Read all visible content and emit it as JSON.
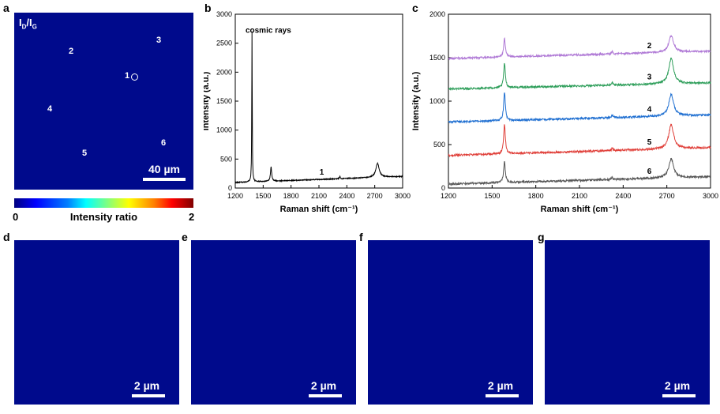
{
  "panels": {
    "a": "a",
    "b": "b",
    "c": "c",
    "d": "d",
    "e": "e",
    "f": "f",
    "g": "g"
  },
  "map_a": {
    "title_main": "I",
    "title_sub1": "D",
    "title_slash": "/I",
    "title_sub2": "G",
    "points": [
      "1",
      "2",
      "3",
      "4",
      "5",
      "6"
    ],
    "scale": "40 µm",
    "background": "#000a8c"
  },
  "colorbar": {
    "min": "0",
    "max": "2",
    "label": "Intensity ratio"
  },
  "small_maps": {
    "scale": "2 µm"
  },
  "chart_data": [
    {
      "type": "line",
      "panel": "b",
      "xlabel": "Raman shift (cm⁻¹)",
      "ylabel": "Intensity (a.u.)",
      "xlim": [
        1200,
        3000
      ],
      "ylim": [
        0,
        3000
      ],
      "xticks": [
        "1200",
        "1500",
        "1800",
        "2100",
        "2400",
        "2700",
        "3000"
      ],
      "yticks": [
        "0",
        "500",
        "1000",
        "1500",
        "2000",
        "2500",
        "3000"
      ],
      "annotation": "cosmic rays",
      "series": [
        {
          "name": "1",
          "color": "#000000",
          "baseline_start": 95,
          "baseline_end": 200,
          "peaks": [
            {
              "x": 1380,
              "height": 2600,
              "width": 3
            },
            {
              "x": 1585,
              "height": 240,
              "width": 8
            },
            {
              "x": 2325,
              "height": 40,
              "width": 5
            },
            {
              "x": 2730,
              "height": 240,
              "width": 22
            }
          ]
        }
      ]
    },
    {
      "type": "line",
      "panel": "c",
      "xlabel": "Raman shift (cm⁻¹)",
      "ylabel": "Intensity (a.u.)",
      "xlim": [
        1200,
        3000
      ],
      "ylim": [
        0,
        2000
      ],
      "xticks": [
        "1200",
        "1500",
        "1800",
        "2100",
        "2400",
        "2700",
        "3000"
      ],
      "yticks": [
        "0",
        "500",
        "1000",
        "1500",
        "2000"
      ],
      "series": [
        {
          "name": "2",
          "color": "#b07ad6",
          "baseline_start": 1490,
          "baseline_end": 1575,
          "peaks": [
            {
              "x": 1585,
              "height": 210,
              "width": 7
            },
            {
              "x": 2325,
              "height": 30,
              "width": 5
            },
            {
              "x": 2730,
              "height": 190,
              "width": 20
            }
          ]
        },
        {
          "name": "3",
          "color": "#2e9e5a",
          "baseline_start": 1140,
          "baseline_end": 1210,
          "peaks": [
            {
              "x": 1585,
              "height": 280,
              "width": 7
            },
            {
              "x": 2325,
              "height": 30,
              "width": 5
            },
            {
              "x": 2730,
              "height": 290,
              "width": 20
            }
          ]
        },
        {
          "name": "4",
          "color": "#1f6fd1",
          "baseline_start": 760,
          "baseline_end": 840,
          "peaks": [
            {
              "x": 1585,
              "height": 330,
              "width": 7
            },
            {
              "x": 2325,
              "height": 30,
              "width": 5
            },
            {
              "x": 2730,
              "height": 250,
              "width": 20
            }
          ]
        },
        {
          "name": "5",
          "color": "#e0403a",
          "baseline_start": 375,
          "baseline_end": 465,
          "peaks": [
            {
              "x": 1585,
              "height": 340,
              "width": 7
            },
            {
              "x": 2325,
              "height": 30,
              "width": 5
            },
            {
              "x": 2730,
              "height": 280,
              "width": 20
            }
          ]
        },
        {
          "name": "6",
          "color": "#555555",
          "baseline_start": 45,
          "baseline_end": 130,
          "peaks": [
            {
              "x": 1585,
              "height": 240,
              "width": 7
            },
            {
              "x": 2325,
              "height": 25,
              "width": 5
            },
            {
              "x": 2730,
              "height": 220,
              "width": 20
            }
          ]
        }
      ]
    }
  ]
}
